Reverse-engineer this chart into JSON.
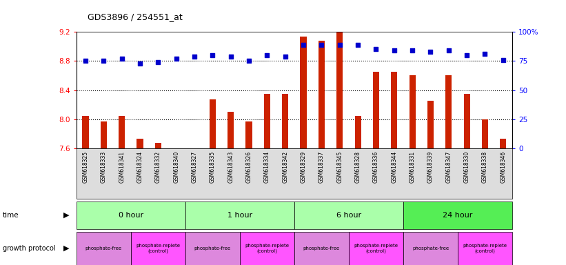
{
  "title": "GDS3896 / 254551_at",
  "samples": [
    "GSM618325",
    "GSM618333",
    "GSM618341",
    "GSM618324",
    "GSM618332",
    "GSM618340",
    "GSM618327",
    "GSM618335",
    "GSM618343",
    "GSM618326",
    "GSM618334",
    "GSM618342",
    "GSM618329",
    "GSM618337",
    "GSM618345",
    "GSM618328",
    "GSM618336",
    "GSM618344",
    "GSM618331",
    "GSM618339",
    "GSM618347",
    "GSM618330",
    "GSM618338",
    "GSM618346"
  ],
  "bar_values": [
    8.05,
    7.97,
    8.05,
    7.73,
    7.68,
    7.6,
    7.58,
    8.27,
    8.1,
    7.97,
    8.35,
    8.35,
    9.13,
    9.08,
    9.2,
    8.05,
    8.65,
    8.65,
    8.6,
    8.25,
    8.6,
    8.35,
    8.0,
    7.73
  ],
  "percentile_values": [
    75,
    75,
    77,
    73,
    74,
    77,
    79,
    80,
    79,
    75,
    80,
    79,
    89,
    89,
    89,
    89,
    85,
    84,
    84,
    83,
    84,
    80,
    81,
    76
  ],
  "ymin": 7.6,
  "ymax": 9.2,
  "yticks": [
    7.6,
    8.0,
    8.4,
    8.8,
    9.2
  ],
  "y2min": 0,
  "y2max": 100,
  "y2ticks": [
    0,
    25,
    50,
    75,
    100
  ],
  "y2ticklabels": [
    "0",
    "25",
    "50",
    "75",
    "100%"
  ],
  "bar_color": "#cc2200",
  "dot_color": "#0000cc",
  "time_groups": [
    {
      "label": "0 hour",
      "start": 0,
      "end": 6
    },
    {
      "label": "1 hour",
      "start": 6,
      "end": 12
    },
    {
      "label": "6 hour",
      "start": 12,
      "end": 18
    },
    {
      "label": "24 hour",
      "start": 18,
      "end": 24
    }
  ],
  "time_colors": [
    "#aaffaa",
    "#aaffaa",
    "#aaffaa",
    "#55ee55"
  ],
  "protocol_groups": [
    {
      "label": "phosphate-free",
      "start": 0,
      "end": 3
    },
    {
      "label": "phosphate-replete\n(control)",
      "start": 3,
      "end": 6
    },
    {
      "label": "phosphate-free",
      "start": 6,
      "end": 9
    },
    {
      "label": "phosphate-replete\n(control)",
      "start": 9,
      "end": 12
    },
    {
      "label": "phosphate-free",
      "start": 12,
      "end": 15
    },
    {
      "label": "phosphate-replete\n(control)",
      "start": 15,
      "end": 18
    },
    {
      "label": "phosphate-free",
      "start": 18,
      "end": 21
    },
    {
      "label": "phosphate-replete\n(control)",
      "start": 21,
      "end": 24
    }
  ],
  "proto_colors": [
    "#dd88dd",
    "#ff55ff",
    "#dd88dd",
    "#ff55ff",
    "#dd88dd",
    "#ff55ff",
    "#dd88dd",
    "#ff55ff"
  ]
}
